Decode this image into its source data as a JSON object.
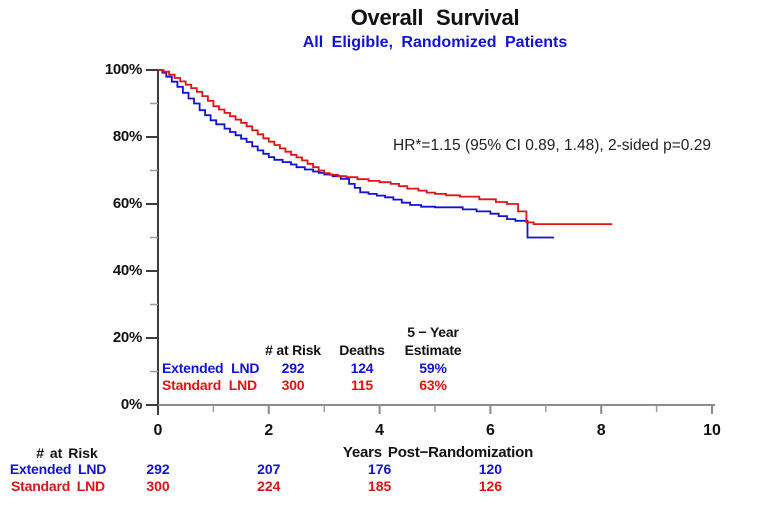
{
  "chart_data": {
    "type": "line",
    "subtype": "kaplan-meier-step",
    "title": "Overall Survival",
    "subtitle": "All Eligible, Randomized Patients",
    "annotation": "HR*=1.15 (95% CI 0.89, 1.48), 2-sided p=0.29",
    "xlabel": "Years Post−Randomization",
    "ylabel": "",
    "xlim": [
      0,
      10
    ],
    "ylim": [
      0,
      100
    ],
    "x_ticks_major": [
      0,
      2,
      4,
      6,
      8,
      10
    ],
    "x_ticks_minor": [
      1,
      3,
      5,
      7,
      9
    ],
    "y_ticks_major": [
      0,
      20,
      40,
      60,
      80,
      100
    ],
    "y_ticks_minor": [
      10,
      30,
      50,
      70,
      90
    ],
    "y_tick_suffix": "%",
    "grid": false,
    "legend_position": "in-plot table (lower left)",
    "colors": {
      "extended_lnd": "#1212d4",
      "standard_lnd": "#e01414",
      "axis_dark": "#3c3c3c",
      "axis_gray": "#8c8c8c"
    },
    "series": [
      {
        "name": "Extended LND",
        "color": "#1212d4",
        "steps_year_percent": [
          [
            0,
            100
          ],
          [
            0.08,
            99.2
          ],
          [
            0.15,
            98
          ],
          [
            0.25,
            96.5
          ],
          [
            0.35,
            95
          ],
          [
            0.45,
            93.2
          ],
          [
            0.55,
            91.5
          ],
          [
            0.65,
            90
          ],
          [
            0.75,
            88
          ],
          [
            0.85,
            86.5
          ],
          [
            0.95,
            85
          ],
          [
            1.05,
            83.8
          ],
          [
            1.2,
            82.5
          ],
          [
            1.3,
            81.5
          ],
          [
            1.4,
            80.5
          ],
          [
            1.5,
            79.5
          ],
          [
            1.6,
            78.5
          ],
          [
            1.7,
            77.2
          ],
          [
            1.8,
            76
          ],
          [
            1.9,
            75
          ],
          [
            2.0,
            74
          ],
          [
            2.1,
            73.2
          ],
          [
            2.25,
            72.5
          ],
          [
            2.4,
            71.8
          ],
          [
            2.5,
            71
          ],
          [
            2.65,
            70.3
          ],
          [
            2.8,
            69.7
          ],
          [
            2.9,
            69.3
          ],
          [
            3.0,
            68.8
          ],
          [
            3.15,
            68.3
          ],
          [
            3.3,
            67.5
          ],
          [
            3.45,
            66
          ],
          [
            3.55,
            64.8
          ],
          [
            3.65,
            63.5
          ],
          [
            3.8,
            63
          ],
          [
            3.95,
            62.5
          ],
          [
            4.1,
            62
          ],
          [
            4.25,
            61.3
          ],
          [
            4.4,
            60.4
          ],
          [
            4.55,
            59.7
          ],
          [
            4.75,
            59.2
          ],
          [
            5.0,
            59
          ],
          [
            5.5,
            58.4
          ],
          [
            5.75,
            57.8
          ],
          [
            6.0,
            57.1
          ],
          [
            6.15,
            56.4
          ],
          [
            6.3,
            55.5
          ],
          [
            6.45,
            55
          ],
          [
            6.67,
            50
          ],
          [
            7.15,
            50
          ]
        ]
      },
      {
        "name": "Standard LND",
        "color": "#e01414",
        "steps_year_percent": [
          [
            0,
            100
          ],
          [
            0.1,
            99.5
          ],
          [
            0.2,
            98.6
          ],
          [
            0.3,
            97.6
          ],
          [
            0.4,
            96.6
          ],
          [
            0.5,
            95.6
          ],
          [
            0.6,
            94.6
          ],
          [
            0.7,
            93.5
          ],
          [
            0.8,
            92.2
          ],
          [
            0.9,
            90.8
          ],
          [
            1.0,
            89.2
          ],
          [
            1.1,
            88.2
          ],
          [
            1.2,
            87.2
          ],
          [
            1.3,
            86.2
          ],
          [
            1.4,
            85.2
          ],
          [
            1.5,
            84.2
          ],
          [
            1.6,
            83.2
          ],
          [
            1.7,
            82
          ],
          [
            1.8,
            80.8
          ],
          [
            1.9,
            79.6
          ],
          [
            2.0,
            78.6
          ],
          [
            2.1,
            77.6
          ],
          [
            2.2,
            76.6
          ],
          [
            2.3,
            75.6
          ],
          [
            2.4,
            74.7
          ],
          [
            2.5,
            73.9
          ],
          [
            2.6,
            73
          ],
          [
            2.7,
            72
          ],
          [
            2.8,
            71
          ],
          [
            2.9,
            70
          ],
          [
            3.0,
            69.2
          ],
          [
            3.1,
            68.7
          ],
          [
            3.25,
            68.3
          ],
          [
            3.4,
            68
          ],
          [
            3.6,
            67.4
          ],
          [
            3.8,
            66.9
          ],
          [
            4.0,
            66.5
          ],
          [
            4.2,
            66
          ],
          [
            4.35,
            65.3
          ],
          [
            4.5,
            64.6
          ],
          [
            4.7,
            64
          ],
          [
            4.85,
            63.4
          ],
          [
            5.0,
            63
          ],
          [
            5.2,
            62.6
          ],
          [
            5.45,
            62.2
          ],
          [
            5.8,
            61.4
          ],
          [
            6.1,
            60.6
          ],
          [
            6.3,
            60
          ],
          [
            6.5,
            57.8
          ],
          [
            6.65,
            54.5
          ],
          [
            6.78,
            54
          ],
          [
            8.2,
            54
          ]
        ]
      }
    ],
    "stats_table": {
      "header_at_risk": "# at Risk",
      "header_deaths": "Deaths",
      "header_estimate_line1": "5 − Year",
      "header_estimate_line2": "Estimate",
      "rows": [
        {
          "label": "Extended LND",
          "at_risk": "292",
          "deaths": "124",
          "estimate": "59%"
        },
        {
          "label": "Standard LND",
          "at_risk": "300",
          "deaths": "115",
          "estimate": "63%"
        }
      ]
    },
    "risk_table": {
      "header": "# at Risk",
      "times": [
        0,
        2,
        4,
        6
      ],
      "rows": [
        {
          "label": "Extended LND",
          "counts": [
            "292",
            "207",
            "176",
            "120"
          ]
        },
        {
          "label": "Standard LND",
          "counts": [
            "300",
            "224",
            "185",
            "126"
          ]
        }
      ]
    }
  }
}
